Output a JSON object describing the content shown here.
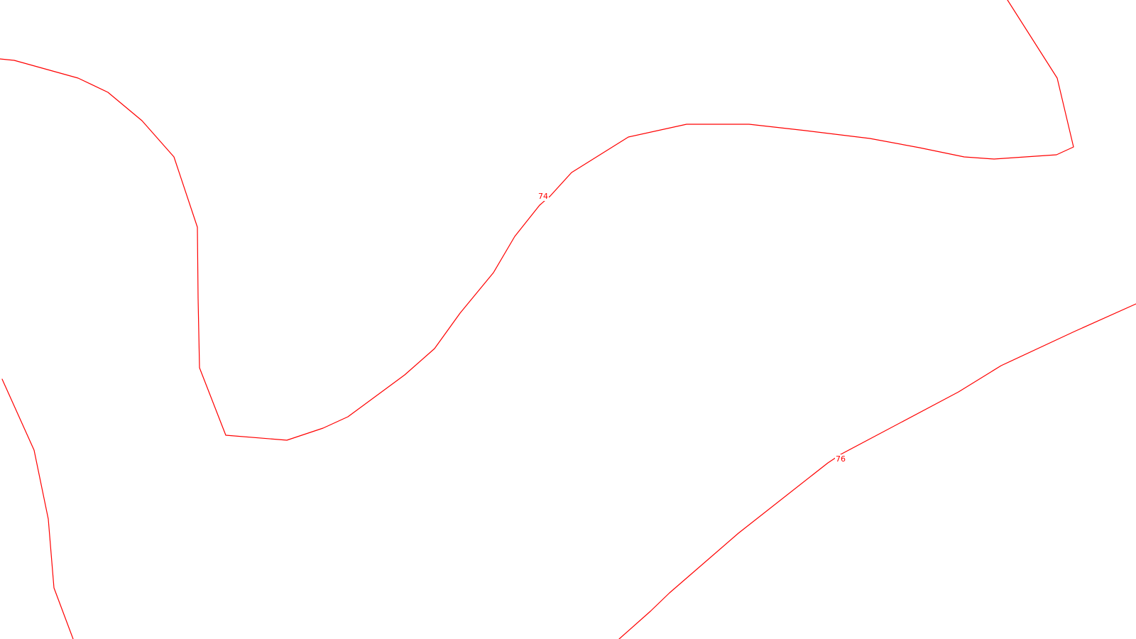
{
  "map": {
    "background_color": "#ffffff",
    "contour_color": "#ff0000",
    "contours": [
      {
        "id": "contour-74",
        "label": "74"
      },
      {
        "id": "contour-76",
        "label": "76"
      },
      {
        "id": "contour-top-right",
        "label": ""
      },
      {
        "id": "contour-left-edge",
        "label": ""
      }
    ]
  }
}
